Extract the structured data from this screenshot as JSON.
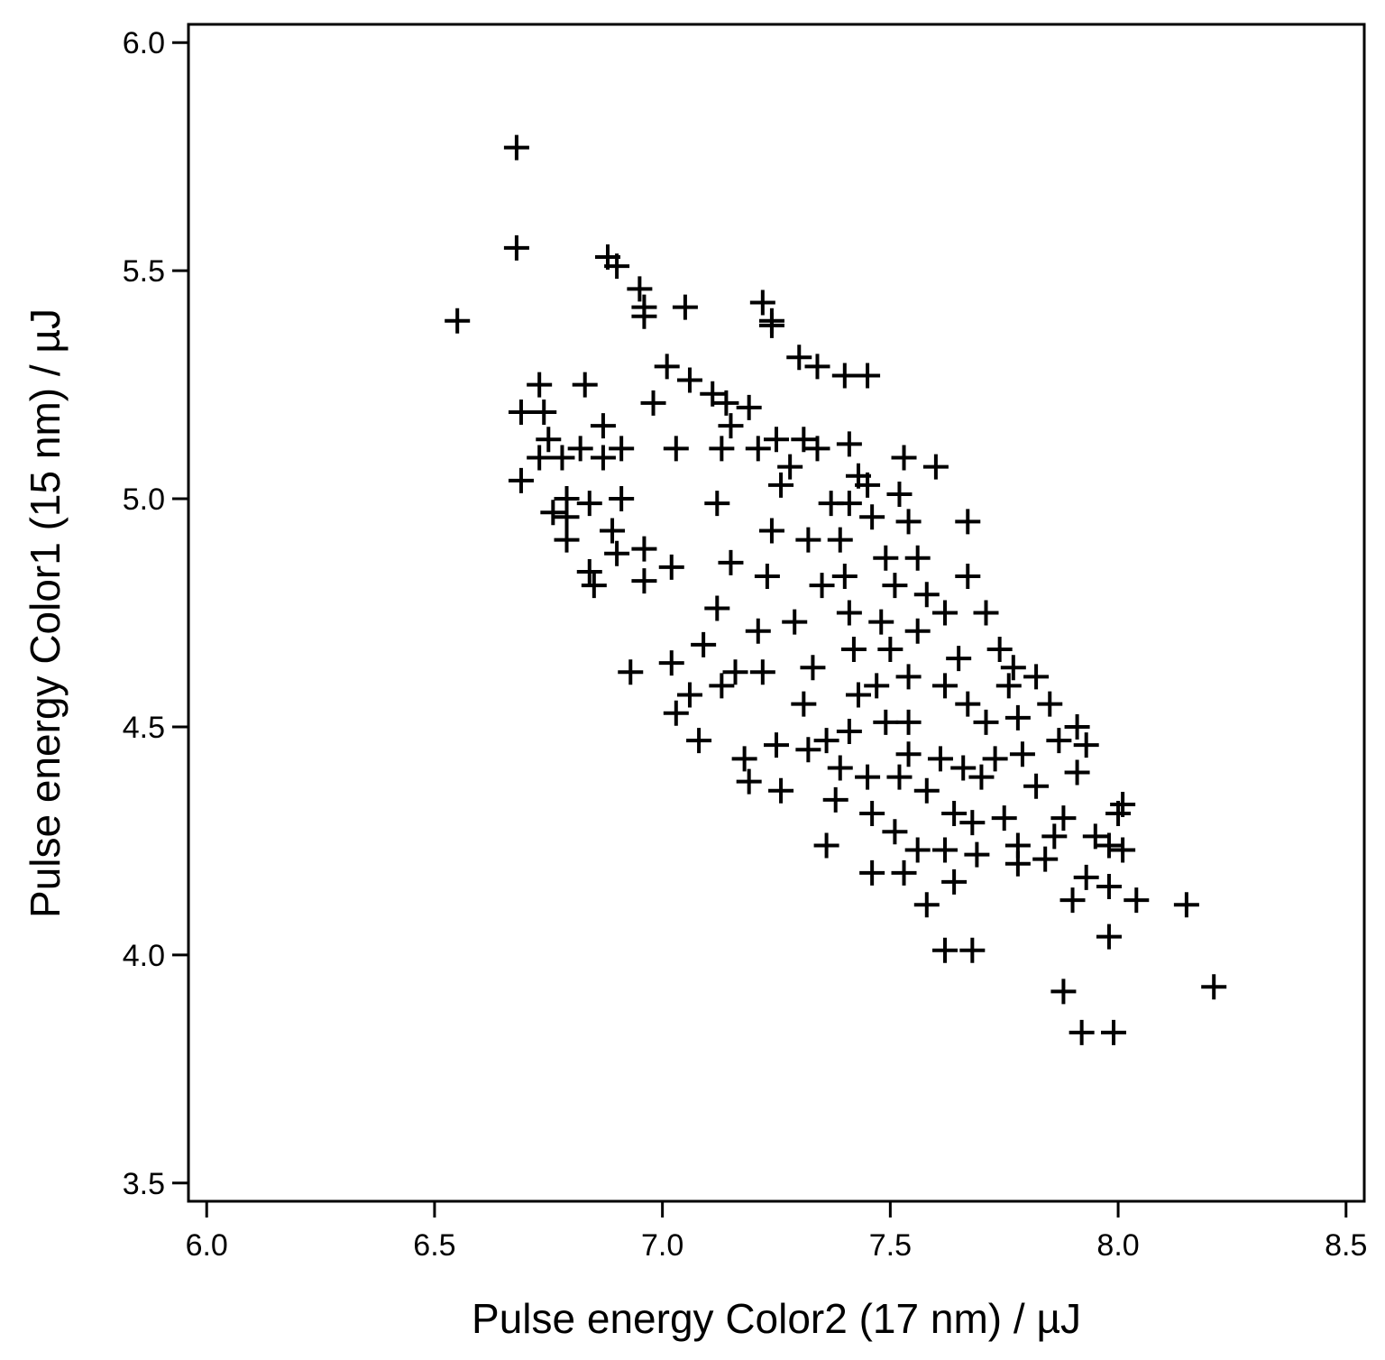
{
  "chart_data": {
    "type": "scatter",
    "x_label": "Pulse energy Color2 (17 nm) / µJ",
    "y_label": "Pulse energy Color1 (15 nm) / µJ",
    "xlim": [
      5.96,
      8.54
    ],
    "ylim": [
      3.46,
      6.04
    ],
    "xticks": [
      {
        "value": 6.0,
        "label": "6.0"
      },
      6.5,
      {
        "value": 7.0,
        "label": "7.0"
      },
      7.5,
      {
        "value": 8.0,
        "label": "8.0"
      },
      8.5
    ],
    "yticks": [
      3.5,
      {
        "value": 4.0,
        "label": "4.0"
      },
      4.5,
      {
        "value": 5.0,
        "label": "5.0"
      },
      5.5,
      {
        "value": 6.0,
        "label": "6.0"
      }
    ],
    "marker": "+",
    "color": "#000000",
    "x": [
      6.68,
      6.68,
      6.55,
      6.88,
      6.9,
      6.95,
      6.96,
      6.96,
      7.05,
      7.22,
      7.24,
      7.24,
      7.3,
      7.34,
      7.4,
      7.45,
      6.69,
      6.73,
      6.74,
      6.83,
      6.69,
      6.75,
      6.73,
      6.82,
      6.87,
      6.91,
      6.87,
      6.78,
      6.76,
      6.79,
      6.79,
      6.79,
      6.84,
      6.84,
      6.85,
      6.89,
      6.9,
      6.91,
      6.93,
      6.96,
      6.96,
      7.01,
      6.98,
      7.03,
      7.02,
      7.02,
      7.03,
      7.08,
      7.06,
      7.09,
      7.06,
      7.11,
      7.14,
      7.13,
      7.15,
      7.19,
      7.12,
      7.15,
      7.12,
      7.13,
      7.16,
      7.18,
      7.19,
      7.26,
      7.25,
      7.22,
      7.21,
      7.23,
      7.24,
      7.26,
      7.28,
      7.25,
      7.21,
      7.31,
      7.34,
      7.37,
      7.32,
      7.35,
      7.29,
      7.33,
      7.31,
      7.32,
      7.36,
      7.36,
      7.38,
      7.39,
      7.41,
      7.43,
      7.42,
      7.41,
      7.4,
      7.39,
      7.41,
      7.43,
      7.45,
      7.41,
      7.46,
      7.49,
      7.51,
      7.48,
      7.5,
      7.47,
      7.49,
      7.45,
      7.46,
      7.46,
      7.51,
      7.52,
      7.53,
      7.52,
      7.54,
      7.56,
      7.58,
      7.6,
      7.56,
      7.54,
      7.54,
      7.54,
      7.53,
      7.56,
      7.58,
      7.62,
      7.68,
      7.64,
      7.62,
      7.69,
      7.68,
      7.61,
      7.58,
      7.64,
      7.66,
      7.7,
      7.62,
      7.65,
      7.67,
      7.71,
      7.67,
      7.67,
      7.62,
      7.71,
      7.73,
      7.75,
      7.78,
      7.78,
      7.82,
      7.84,
      7.85,
      7.82,
      7.78,
      7.79,
      7.76,
      7.74,
      7.77,
      7.87,
      7.91,
      7.93,
      7.91,
      7.88,
      7.86,
      7.88,
      7.92,
      7.99,
      7.98,
      7.98,
      7.93,
      7.9,
      7.95,
      8.01,
      8.0,
      8.01,
      7.98,
      8.04,
      8.15,
      8.21
    ],
    "values": [
      5.77,
      5.55,
      5.39,
      5.53,
      5.51,
      5.46,
      5.42,
      5.4,
      5.42,
      5.43,
      5.39,
      5.38,
      5.31,
      5.29,
      5.27,
      5.27,
      5.19,
      5.25,
      5.19,
      5.25,
      5.04,
      5.13,
      5.09,
      5.11,
      5.09,
      5.11,
      5.16,
      5.09,
      4.97,
      5.0,
      4.96,
      4.91,
      4.99,
      4.84,
      4.81,
      4.93,
      4.88,
      5.0,
      4.62,
      4.82,
      4.89,
      5.29,
      5.21,
      5.11,
      4.85,
      4.64,
      4.53,
      4.47,
      4.57,
      4.68,
      5.26,
      5.23,
      5.21,
      5.11,
      5.16,
      5.2,
      4.99,
      4.86,
      4.76,
      4.59,
      4.62,
      4.43,
      4.38,
      4.36,
      4.46,
      4.62,
      4.71,
      4.83,
      4.93,
      5.03,
      5.07,
      5.13,
      5.11,
      5.13,
      5.11,
      4.99,
      4.91,
      4.81,
      4.73,
      4.63,
      4.55,
      4.45,
      4.47,
      4.24,
      4.34,
      4.41,
      4.49,
      4.57,
      4.67,
      4.75,
      4.83,
      4.91,
      4.99,
      5.05,
      5.03,
      5.12,
      4.96,
      4.87,
      4.81,
      4.73,
      4.67,
      4.59,
      4.51,
      4.39,
      4.31,
      4.18,
      4.27,
      4.39,
      5.09,
      5.01,
      4.95,
      4.87,
      4.79,
      5.07,
      4.71,
      4.61,
      4.51,
      4.44,
      4.18,
      4.23,
      4.11,
      4.01,
      4.01,
      4.16,
      4.23,
      4.22,
      4.29,
      4.43,
      4.36,
      4.31,
      4.41,
      4.39,
      4.59,
      4.65,
      4.55,
      4.75,
      4.83,
      4.95,
      4.75,
      4.51,
      4.43,
      4.3,
      4.2,
      4.24,
      4.37,
      4.21,
      4.55,
      4.61,
      4.52,
      4.44,
      4.59,
      4.67,
      4.63,
      4.47,
      4.5,
      4.46,
      4.4,
      4.3,
      4.26,
      3.92,
      3.83,
      3.83,
      4.04,
      4.15,
      4.17,
      4.12,
      4.26,
      4.33,
      4.31,
      4.23,
      4.24,
      4.12,
      4.11,
      3.93
    ]
  }
}
